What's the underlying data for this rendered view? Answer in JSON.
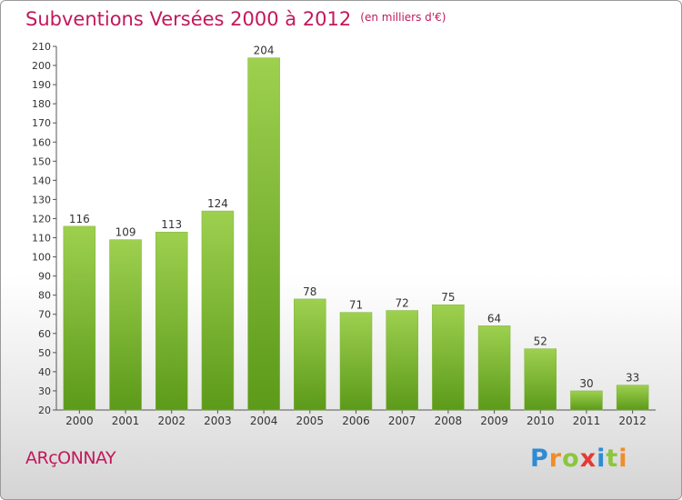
{
  "header": {
    "title": "Subventions Versées 2000 à 2012",
    "unit_note": "(en milliers d'€)"
  },
  "footer": {
    "commune": "ARçONNAY",
    "brand_letters": [
      {
        "char": "P",
        "color": "#2e8bd6"
      },
      {
        "char": "r",
        "color": "#f28c28"
      },
      {
        "char": "o",
        "color": "#8cc63f"
      },
      {
        "char": "x",
        "color": "#e53935"
      },
      {
        "char": "i",
        "color": "#2e8bd6"
      },
      {
        "char": "t",
        "color": "#8cc63f"
      },
      {
        "char": "i",
        "color": "#f28c28"
      }
    ]
  },
  "chart_data": {
    "type": "bar",
    "categories": [
      "2000",
      "2001",
      "2002",
      "2003",
      "2004",
      "2005",
      "2006",
      "2007",
      "2008",
      "2009",
      "2010",
      "2011",
      "2012"
    ],
    "values": [
      116,
      109,
      113,
      124,
      204,
      78,
      71,
      72,
      75,
      64,
      52,
      30,
      33
    ],
    "ylim": [
      20,
      210
    ],
    "yticks": [
      20,
      30,
      40,
      50,
      60,
      70,
      80,
      90,
      100,
      110,
      120,
      130,
      140,
      150,
      160,
      170,
      180,
      190,
      200,
      210
    ],
    "grid": false,
    "bar_color_top": "#9ed04f",
    "bar_color_bottom": "#5c9a1a"
  }
}
